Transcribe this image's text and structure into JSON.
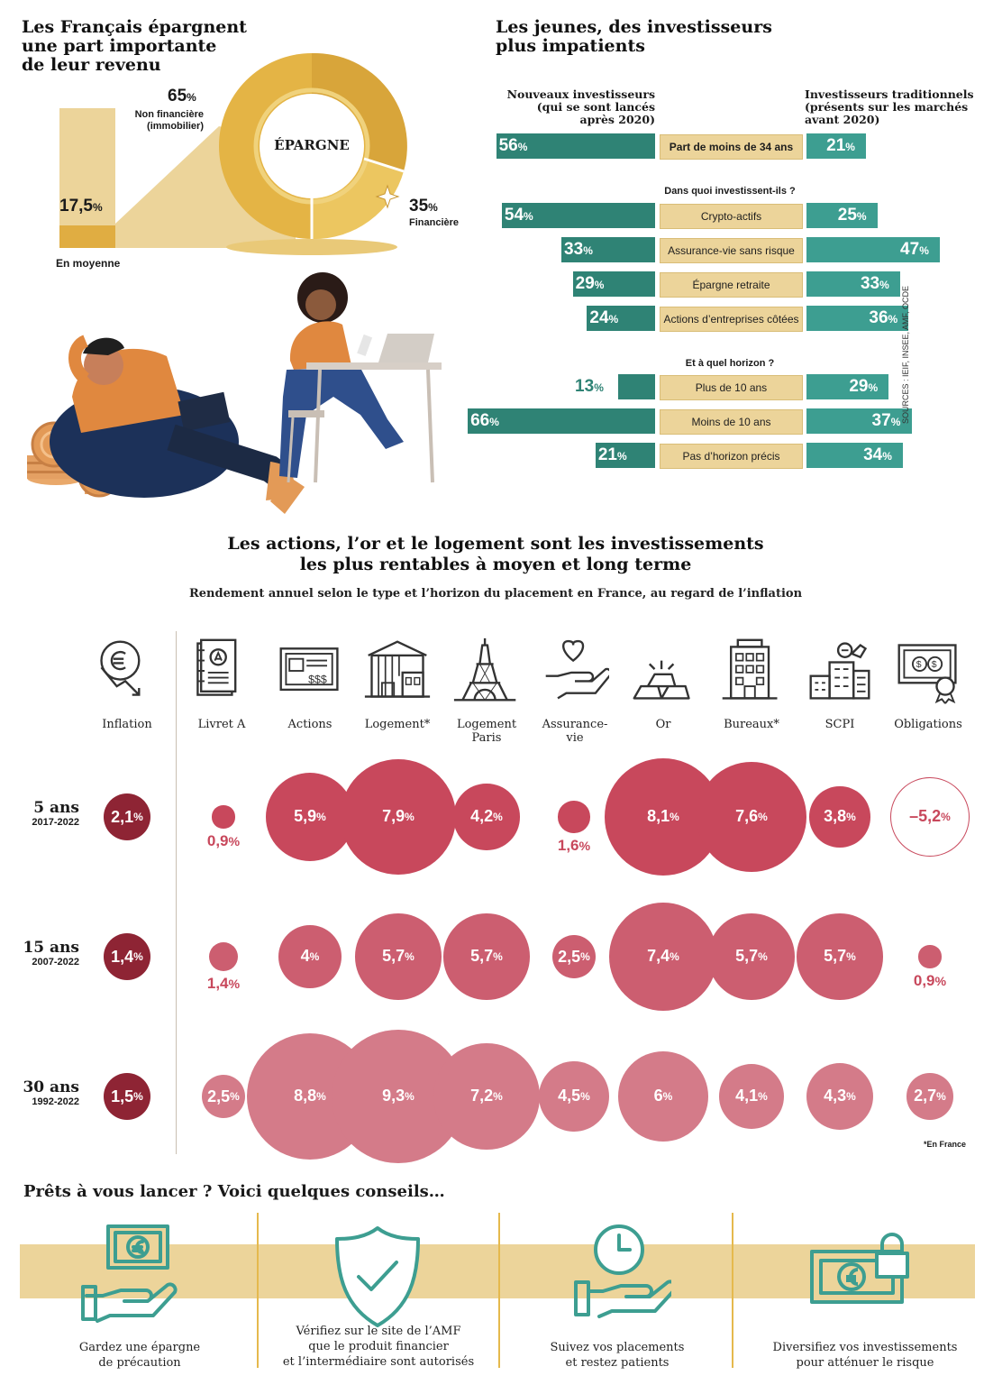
{
  "savings": {
    "title": "Les Français épargnent une part importante de leur revenu",
    "title_lines": [
      "Les Français épargnent",
      "une part importante",
      "de leur revenu"
    ],
    "bar_value": "17,5",
    "bar_caption": "En moyenne",
    "donut_center": "ÉPARGNE",
    "non_fin_pct": "65",
    "non_fin_label_1": "Non financière",
    "non_fin_label_2": "(immobilier)",
    "fin_pct": "35",
    "fin_label": "Financière",
    "pct_sign": "%"
  },
  "young": {
    "title_lines": [
      "Les jeunes, des investisseurs",
      "plus impatients"
    ],
    "left_header": [
      "Nouveaux investisseurs",
      "(qui se sont lancés",
      "après 2020)"
    ],
    "right_header": [
      "Investisseurs traditionnels",
      "(présents sur les marchés",
      "avant 2020)"
    ],
    "q1": "Dans quoi investissent-ils ?",
    "q2": "Et à quel horizon ?",
    "sources": "SOURCES : IEIF, INSEE, AMF, OCDE",
    "chart_data": {
      "type": "bar",
      "orientation": "horizontal-butterfly",
      "series_names": [
        "Nouveaux investisseurs",
        "Investisseurs traditionnels"
      ],
      "groups": [
        {
          "question": "",
          "rows": [
            {
              "label": "Part de moins de 34 ans",
              "new": 56,
              "trad": 21
            }
          ]
        },
        {
          "question": "Dans quoi investissent-ils ?",
          "rows": [
            {
              "label": "Crypto-actifs",
              "new": 54,
              "trad": 25
            },
            {
              "label": "Assurance-vie sans risque",
              "new": 33,
              "trad": 47
            },
            {
              "label": "Épargne retraite",
              "new": 29,
              "trad": 33
            },
            {
              "label": "Actions d’entreprises côtées",
              "new": 24,
              "trad": 36
            }
          ]
        },
        {
          "question": "Et à quel horizon ?",
          "rows": [
            {
              "label": "Plus de 10 ans",
              "new": 13,
              "trad": 29
            },
            {
              "label": "Moins de 10 ans",
              "new": 66,
              "trad": 37
            },
            {
              "label": "Pas d’horizon précis",
              "new": 21,
              "trad": 34
            }
          ]
        }
      ],
      "unit": "%"
    }
  },
  "returns": {
    "title_lines": [
      "Les actions, l’or et le logement sont les investissements",
      "les plus rentables à moyen et long terme"
    ],
    "subtitle": "Rendement annuel selon le type et l’horizon du placement en France, au regard de l’inflation",
    "footnote": "*En France",
    "chart_data": {
      "type": "bubble-table",
      "unit": "%",
      "columns": [
        {
          "label": "Inflation",
          "icon": "inflation-euro-icon"
        },
        {
          "label": "Livret A",
          "icon": "passbook-icon"
        },
        {
          "label": "Actions",
          "icon": "stock-certificate-icon"
        },
        {
          "label": "Logement*",
          "icon": "house-building-icon"
        },
        {
          "label": "Logement Paris",
          "icon": "eiffel-tower-icon"
        },
        {
          "label": "Assurance-vie",
          "icon": "hand-heart-icon"
        },
        {
          "label": "Or",
          "icon": "gold-bars-icon"
        },
        {
          "label": "Bureaux*",
          "icon": "office-building-icon"
        },
        {
          "label": "SCPI",
          "icon": "scpi-buildings-icon"
        },
        {
          "label": "Obligations",
          "icon": "bond-certificate-icon"
        }
      ],
      "rows": [
        {
          "period": "5 ans",
          "years": "2017-2022",
          "values": [
            2.1,
            0.9,
            5.9,
            7.9,
            4.2,
            1.6,
            8.1,
            7.6,
            3.8,
            -5.2
          ],
          "labels": [
            "2,1",
            "0,9",
            "5,9",
            "7,9",
            "4,2",
            "1,6",
            "8,1",
            "7,6",
            "3,8",
            "–5,2"
          ]
        },
        {
          "period": "15 ans",
          "years": "2007-2022",
          "values": [
            1.4,
            1.4,
            4,
            5.7,
            5.7,
            2.5,
            7.4,
            5.7,
            5.7,
            0.9
          ],
          "labels": [
            "1,4",
            "1,4",
            "4",
            "5,7",
            "5,7",
            "2,5",
            "7,4",
            "5,7",
            "5,7",
            "0,9"
          ]
        },
        {
          "period": "30 ans",
          "years": "1992-2022",
          "values": [
            1.5,
            2.5,
            8.8,
            9.3,
            7.2,
            4.5,
            6,
            4.1,
            4.3,
            2.7
          ],
          "labels": [
            "1,5",
            "2,5",
            "8,8",
            "9,3",
            "7,2",
            "4,5",
            "6",
            "4,1",
            "4,3",
            "2,7"
          ]
        }
      ]
    }
  },
  "tips": {
    "title": "Prêts à vous lancer ?  Voici quelques conseils…",
    "items": [
      {
        "icon": "banknote-hand-icon",
        "lines": [
          "Gardez une épargne",
          "de précaution"
        ]
      },
      {
        "icon": "shield-check-icon",
        "lines": [
          "Vérifiez sur le site de l’AMF",
          "que le produit financier",
          "et l’intermédiaire sont autorisés"
        ]
      },
      {
        "icon": "clock-hand-icon",
        "lines": [
          "Suivez vos placements",
          "et restez patients"
        ]
      },
      {
        "icon": "locked-banknote-icon",
        "lines": [
          "Diversifiez vos investissements",
          "pour atténuer le risque"
        ]
      }
    ]
  },
  "colors": {
    "gold": "#e5b94d",
    "gold_light": "#ecd49a",
    "teal": "#3d9e91",
    "teal_dark": "#2f8375",
    "bubble_5": "#c8485c",
    "bubble_15": "#cc5e70",
    "bubble_30": "#d47b89",
    "inflation": "#8e2434"
  }
}
